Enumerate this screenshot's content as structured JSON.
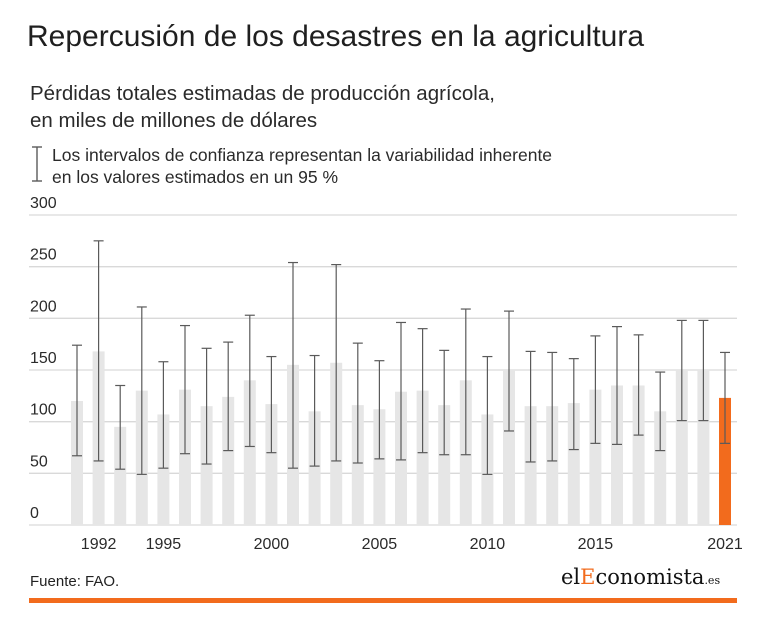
{
  "header": {
    "title": "Repercusión de los desastres en la agricultura",
    "subtitle_line1": "Pérdidas totales estimadas de producción agrícola,",
    "subtitle_line2": "en miles de millones de dólares",
    "note_line1": "Los intervalos de confianza representan la variabilidad inherente",
    "note_line2": "en los valores estimados en un 95 %"
  },
  "footer": {
    "source": "Fuente: FAO.",
    "logo_el": "el",
    "logo_e": "E",
    "logo_rest": "conomista",
    "logo_suffix": ".es"
  },
  "colors": {
    "bar": "#e6e6e6",
    "highlight": "#f26b1d",
    "whisker": "#5a5a5a",
    "grid": "#d9d9d9",
    "accent_rule": "#f26b1d"
  },
  "chart_data": {
    "type": "bar",
    "ylim": [
      0,
      300
    ],
    "yticks": [
      0,
      50,
      100,
      150,
      200,
      250,
      300
    ],
    "xtick_labels": [
      "1992",
      "1995",
      "2000",
      "2005",
      "2010",
      "2015",
      "2021"
    ],
    "grid": true,
    "highlight_category": "2021",
    "categories": [
      "1991",
      "1992",
      "1993",
      "1994",
      "1995",
      "1996",
      "1997",
      "1998",
      "1999",
      "2000",
      "2001",
      "2002",
      "2003",
      "2004",
      "2005",
      "2006",
      "2007",
      "2008",
      "2009",
      "2010",
      "2011",
      "2012",
      "2013",
      "2014",
      "2015",
      "2016",
      "2017",
      "2018",
      "2019",
      "2020",
      "2021"
    ],
    "values": [
      120,
      168,
      95,
      130,
      107,
      131,
      115,
      124,
      140,
      117,
      155,
      110,
      157,
      116,
      112,
      129,
      130,
      116,
      140,
      107,
      150,
      115,
      115,
      118,
      131,
      135,
      135,
      110,
      150,
      150,
      123
    ],
    "ci_low": [
      67,
      62,
      54,
      49,
      55,
      69,
      59,
      72,
      76,
      70,
      55,
      57,
      62,
      60,
      64,
      63,
      70,
      68,
      68,
      49,
      91,
      61,
      62,
      73,
      79,
      78,
      87,
      72,
      101,
      101,
      79
    ],
    "ci_high": [
      174,
      275,
      135,
      211,
      158,
      193,
      171,
      177,
      203,
      163,
      254,
      164,
      252,
      176,
      159,
      196,
      190,
      169,
      209,
      163,
      207,
      168,
      167,
      161,
      183,
      192,
      184,
      148,
      198,
      198,
      167
    ]
  }
}
